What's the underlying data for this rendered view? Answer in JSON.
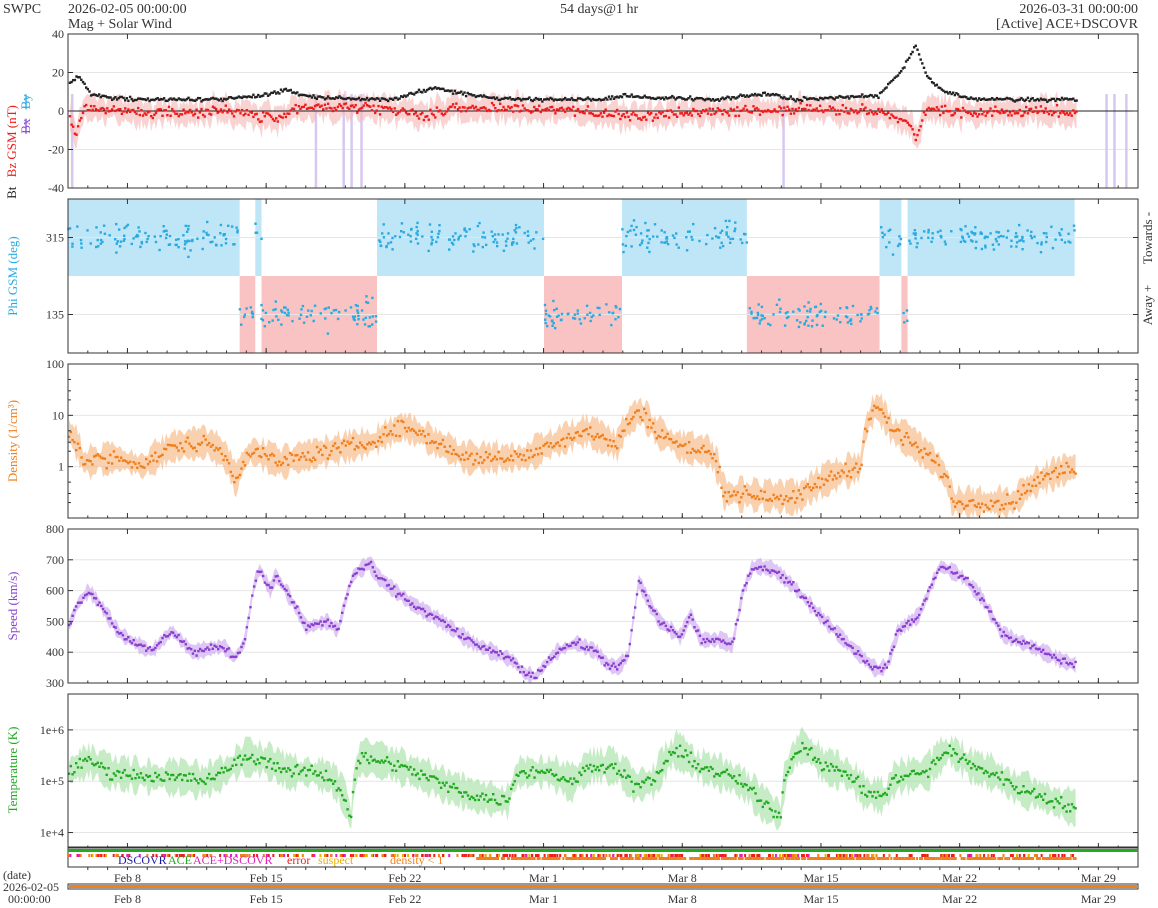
{
  "header": {
    "brand": "SWPC",
    "start": "2026-02-05 00:00:00",
    "product": "Mag + Solar Wind",
    "span": "54 days@1 hr",
    "end": "2026-03-31 00:00:00",
    "source": "[Active] ACE+DSCOVR"
  },
  "colors": {
    "bt": "#222222",
    "bz": "#ee1c1c",
    "by": "#29abe2",
    "bx": "#8a4fd8",
    "phi": "#29abe2",
    "towards_fill": "#bfe6f7",
    "away_fill": "#f9c3c3",
    "density": "#f07f1c",
    "speed": "#8a3fd0",
    "temperature": "#22aa22",
    "bz_shade": "#f5b4b4",
    "purple_flag": "#d7c8f0"
  },
  "chart_data": [
    {
      "type": "line",
      "panel": "mag",
      "ylabel_parts": [
        "Bt",
        "Bz GSM (nT)",
        "Bx",
        "By"
      ],
      "ylim": [
        -40,
        40
      ],
      "yticks": [
        -40,
        -20,
        0,
        20,
        40
      ],
      "grid": true,
      "x_days_range": [
        "2026-02-05 00:00:00",
        "2026-03-31 00:00:00"
      ],
      "series": [
        {
          "name": "Bt",
          "anchors": [
            [
              0,
              14
            ],
            [
              0.7,
              18
            ],
            [
              1.5,
              8
            ],
            [
              4,
              6
            ],
            [
              9,
              6
            ],
            [
              12,
              8
            ],
            [
              13.5,
              11
            ],
            [
              15,
              7
            ],
            [
              20,
              6
            ],
            [
              22.5,
              12
            ],
            [
              24.5,
              9
            ],
            [
              27,
              6
            ],
            [
              33,
              6
            ],
            [
              34.5,
              8
            ],
            [
              36,
              7
            ],
            [
              40,
              6
            ],
            [
              43,
              9
            ],
            [
              45,
              6
            ],
            [
              50,
              8
            ],
            [
              51.5,
              22
            ],
            [
              52.3,
              34
            ],
            [
              53,
              18
            ],
            [
              54,
              10
            ],
            [
              56,
              6
            ],
            [
              60,
              6
            ],
            [
              64,
              6
            ],
            [
              66,
              9
            ]
          ]
        },
        {
          "name": "Bz",
          "anchors": [
            [
              0,
              -2
            ],
            [
              0.5,
              -12
            ],
            [
              1,
              2
            ],
            [
              5,
              -1
            ],
            [
              10,
              0
            ],
            [
              13,
              -4
            ],
            [
              14,
              2
            ],
            [
              20,
              1
            ],
            [
              22,
              -3
            ],
            [
              24,
              2
            ],
            [
              30,
              1
            ],
            [
              35,
              -3
            ],
            [
              40,
              0
            ],
            [
              45,
              1
            ],
            [
              50,
              0
            ],
            [
              51.8,
              -6
            ],
            [
              52.3,
              -15
            ],
            [
              53,
              2
            ],
            [
              55,
              -1
            ],
            [
              60,
              0
            ],
            [
              65,
              -2
            ],
            [
              66,
              -3
            ]
          ]
        }
      ]
    },
    {
      "type": "scatter",
      "panel": "phi",
      "ylabel": "Phi GSM (deg)",
      "ylim": [
        45,
        405
      ],
      "yticks": [
        135,
        315
      ],
      "right_labels": [
        "Towards -",
        "Away +"
      ],
      "sectors": [
        {
          "from": 0,
          "to": 11.0,
          "sector": "towards"
        },
        {
          "from": 11.0,
          "to": 12.0,
          "sector": "away"
        },
        {
          "from": 12.0,
          "to": 12.4,
          "sector": "towards"
        },
        {
          "from": 12.4,
          "to": 19.8,
          "sector": "away"
        },
        {
          "from": 19.8,
          "to": 30.5,
          "sector": "towards"
        },
        {
          "from": 30.5,
          "to": 35.5,
          "sector": "away"
        },
        {
          "from": 35.5,
          "to": 43.5,
          "sector": "towards"
        },
        {
          "from": 43.5,
          "to": 52.0,
          "sector": "away"
        },
        {
          "from": 52.0,
          "to": 53.4,
          "sector": "towards"
        },
        {
          "from": 53.4,
          "to": 53.8,
          "sector": "away"
        },
        {
          "from": 53.8,
          "to": 64.5,
          "sector": "towards"
        }
      ]
    },
    {
      "type": "scatter",
      "panel": "density",
      "ylabel": "Density (1/cm³)",
      "yscale": "log",
      "ylim": [
        0.1,
        100
      ],
      "yticks": [
        1,
        10,
        100
      ],
      "anchors": [
        [
          0,
          5
        ],
        [
          1,
          1.2
        ],
        [
          3,
          1.5
        ],
        [
          5,
          1
        ],
        [
          7,
          2.5
        ],
        [
          9,
          3
        ],
        [
          10,
          2
        ],
        [
          11,
          0.5
        ],
        [
          12,
          2
        ],
        [
          14,
          1.2
        ],
        [
          17,
          2
        ],
        [
          20,
          3
        ],
        [
          22,
          6
        ],
        [
          24,
          3
        ],
        [
          26,
          1.5
        ],
        [
          30,
          1.5
        ],
        [
          32,
          3
        ],
        [
          34,
          5
        ],
        [
          36,
          2.5
        ],
        [
          37.5,
          12
        ],
        [
          38.5,
          5
        ],
        [
          40,
          2.5
        ],
        [
          42,
          2
        ],
        [
          43,
          0.3
        ],
        [
          48,
          0.25
        ],
        [
          52,
          1
        ],
        [
          53,
          15
        ],
        [
          54,
          5
        ],
        [
          56,
          2
        ],
        [
          58,
          0.2
        ],
        [
          62,
          0.2
        ],
        [
          64,
          0.6
        ],
        [
          66,
          1
        ]
      ]
    },
    {
      "type": "scatter",
      "panel": "speed",
      "ylabel": "Speed (km/s)",
      "ylim": [
        300,
        800
      ],
      "yticks": [
        300,
        400,
        500,
        600,
        700,
        800
      ],
      "anchors": [
        [
          0,
          480
        ],
        [
          1,
          560
        ],
        [
          2,
          600
        ],
        [
          3,
          560
        ],
        [
          5,
          460
        ],
        [
          8,
          400
        ],
        [
          10,
          470
        ],
        [
          12,
          400
        ],
        [
          15,
          420
        ],
        [
          16,
          380
        ],
        [
          17,
          430
        ],
        [
          18,
          630
        ],
        [
          18.5,
          670
        ],
        [
          19.5,
          600
        ],
        [
          20,
          650
        ],
        [
          21,
          600
        ],
        [
          23,
          480
        ],
        [
          25,
          500
        ],
        [
          26,
          470
        ],
        [
          27,
          600
        ],
        [
          27.5,
          650
        ],
        [
          29,
          690
        ],
        [
          30,
          640
        ],
        [
          33,
          560
        ],
        [
          36,
          500
        ],
        [
          39,
          430
        ],
        [
          41,
          400
        ],
        [
          43,
          370
        ],
        [
          44,
          330
        ],
        [
          45,
          320
        ],
        [
          47,
          400
        ],
        [
          49,
          430
        ],
        [
          51,
          400
        ],
        [
          52,
          360
        ],
        [
          53,
          350
        ],
        [
          54,
          390
        ],
        [
          55,
          630
        ],
        [
          56,
          560
        ],
        [
          57,
          500
        ],
        [
          59,
          450
        ],
        [
          60,
          520
        ],
        [
          61,
          440
        ],
        [
          63,
          440
        ],
        [
          64,
          420
        ],
        [
          65,
          590
        ],
        [
          66,
          680
        ],
        [
          68,
          670
        ],
        [
          70,
          610
        ],
        [
          73,
          500
        ],
        [
          76,
          400
        ],
        [
          78,
          340
        ],
        [
          79,
          360
        ],
        [
          80,
          470
        ],
        [
          82,
          520
        ],
        [
          83,
          600
        ],
        [
          84,
          680
        ],
        [
          86,
          650
        ],
        [
          88,
          580
        ],
        [
          90,
          460
        ],
        [
          92,
          430
        ],
        [
          94,
          400
        ],
        [
          96,
          370
        ],
        [
          97,
          360
        ]
      ]
    },
    {
      "type": "scatter",
      "panel": "temperature",
      "ylabel": "Temperature (K)",
      "yscale": "log",
      "ylim": [
        5000,
        5000000
      ],
      "ytick_labels": [
        "1e+4",
        "1e+5",
        "1e+6"
      ],
      "anchors": [
        [
          0,
          150000.0
        ],
        [
          2,
          250000.0
        ],
        [
          4,
          150000.0
        ],
        [
          8,
          120000.0
        ],
        [
          11,
          120000.0
        ],
        [
          13,
          100000.0
        ],
        [
          15,
          150000.0
        ],
        [
          17,
          300000.0
        ],
        [
          19,
          250000.0
        ],
        [
          21,
          150000.0
        ],
        [
          23,
          150000.0
        ],
        [
          25,
          120000.0
        ],
        [
          27,
          15000.0
        ],
        [
          28,
          300000.0
        ],
        [
          30,
          250000.0
        ],
        [
          33,
          150000.0
        ],
        [
          36,
          80000.0
        ],
        [
          39,
          50000.0
        ],
        [
          42,
          40000.0
        ],
        [
          43,
          150000.0
        ],
        [
          46,
          150000.0
        ],
        [
          48,
          90000.0
        ],
        [
          50,
          200000.0
        ],
        [
          52,
          200000.0
        ],
        [
          54,
          80000.0
        ],
        [
          56,
          100000.0
        ],
        [
          58,
          400000.0
        ],
        [
          60,
          200000.0
        ],
        [
          62,
          150000.0
        ],
        [
          64,
          100000.0
        ],
        [
          66,
          40000.0
        ],
        [
          68,
          20000.0
        ],
        [
          70,
          500000.0
        ],
        [
          72,
          200000.0
        ],
        [
          74,
          150000.0
        ],
        [
          76,
          60000.0
        ],
        [
          78,
          50000.0
        ],
        [
          79,
          120000.0
        ],
        [
          82,
          150000.0
        ],
        [
          84,
          400000.0
        ],
        [
          86,
          200000.0
        ],
        [
          88,
          150000.0
        ],
        [
          90,
          80000.0
        ],
        [
          92,
          60000.0
        ],
        [
          94,
          40000.0
        ],
        [
          96,
          30000.0
        ]
      ]
    }
  ],
  "x_ticks": [
    "Feb 8",
    "Feb 15",
    "Feb 22",
    "Mar 1",
    "Mar 8",
    "Mar 15",
    "Mar 22",
    "Mar 29"
  ],
  "legend": {
    "dscovr": "DSCOVR",
    "ace": "ACE",
    "ace_dscovr": "ACE+DSCOVR",
    "error": "error",
    "suspect": "suspect",
    "density": "density < 1"
  },
  "footer": {
    "label": "(date)",
    "date1": "2026-02-05",
    "date2": "00:00:00"
  }
}
